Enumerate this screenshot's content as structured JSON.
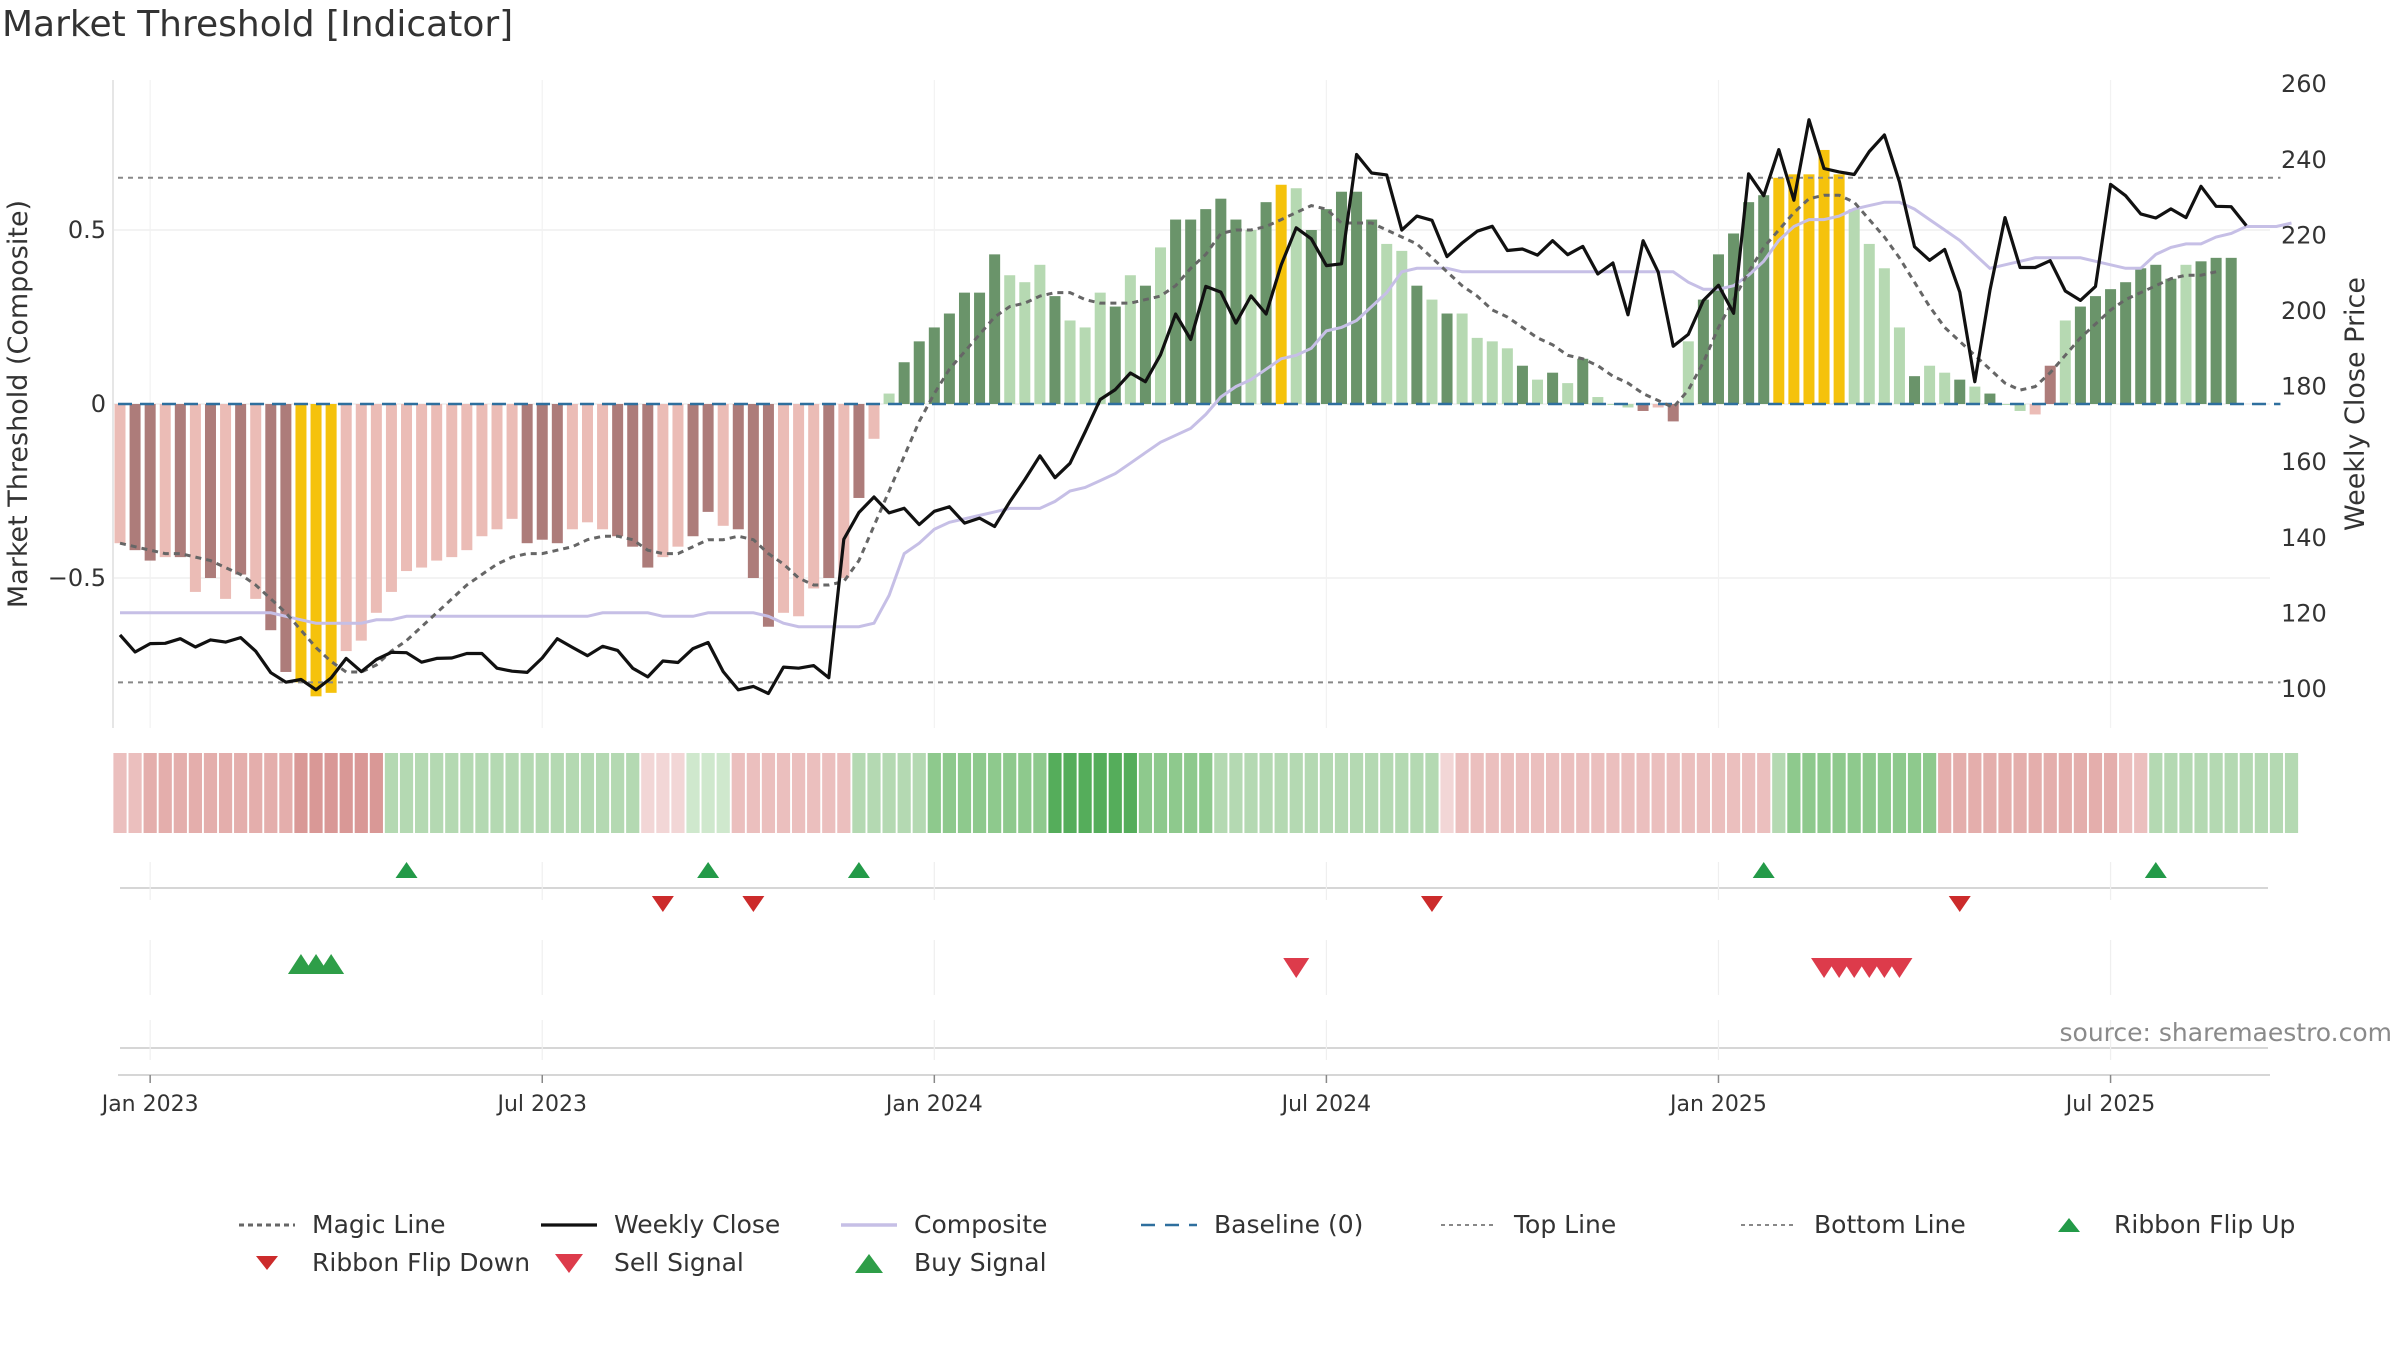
{
  "title": "Market Threshold [Indicator]",
  "source": "source: sharemaestro.com",
  "colors": {
    "gold": "#f5c20c",
    "bar_green_dark": "#6a946a",
    "bar_green_light": "#b6d9b2",
    "bar_red_dark": "#ad7c7a",
    "bar_red_light": "#ebbcb6",
    "close_line": "#111111",
    "composite_line": "#c6bfe6",
    "magic_line": "#666666",
    "baseline": "#2e6f9e",
    "threshold_line": "#888888",
    "ribbon_flip": "#239a48",
    "ribbon_flip_down": "#cc2b2b",
    "sell": "#dd3b4b",
    "buy": "#2e9e48"
  },
  "chart_data": {
    "type": "bar",
    "left_axis": {
      "label": "Market Threshold (Composite)",
      "ticks": [
        "0.5",
        "0",
        "−0.5"
      ],
      "tick_values": [
        0.5,
        0,
        -0.5
      ],
      "range": [
        -0.93,
        0.93
      ]
    },
    "right_axis": {
      "label": "Weekly Close Price",
      "ticks": [
        "260",
        "240",
        "220",
        "200",
        "180",
        "160",
        "140",
        "120",
        "100"
      ],
      "tick_values": [
        260,
        240,
        220,
        200,
        180,
        160,
        140,
        120,
        100
      ],
      "range": [
        96,
        260
      ]
    },
    "x_ticks": [
      {
        "label": "Jan 2023",
        "week": 2
      },
      {
        "label": "Jul 2023",
        "week": 28
      },
      {
        "label": "Jan 2024",
        "week": 54
      },
      {
        "label": "Jul 2024",
        "week": 80
      },
      {
        "label": "Jan 2025",
        "week": 106
      },
      {
        "label": "Jul 2025",
        "week": 132
      }
    ],
    "weeks": 144,
    "top_line": 0.65,
    "bottom_line": -0.8,
    "composite_bars": [
      -0.4,
      -0.42,
      -0.45,
      -0.44,
      -0.44,
      -0.54,
      -0.5,
      -0.56,
      -0.49,
      -0.56,
      -0.65,
      -0.77,
      -0.8,
      -0.84,
      -0.83,
      -0.71,
      -0.68,
      -0.6,
      -0.54,
      -0.48,
      -0.47,
      -0.45,
      -0.44,
      -0.42,
      -0.38,
      -0.36,
      -0.33,
      -0.4,
      -0.39,
      -0.4,
      -0.36,
      -0.34,
      -0.36,
      -0.38,
      -0.41,
      -0.47,
      -0.44,
      -0.41,
      -0.38,
      -0.31,
      -0.35,
      -0.36,
      -0.5,
      -0.64,
      -0.6,
      -0.61,
      -0.53,
      -0.5,
      -0.5,
      -0.27,
      -0.1,
      0.03,
      0.12,
      0.18,
      0.22,
      0.26,
      0.32,
      0.32,
      0.43,
      0.37,
      0.35,
      0.4,
      0.31,
      0.24,
      0.22,
      0.32,
      0.28,
      0.37,
      0.34,
      0.45,
      0.53,
      0.53,
      0.56,
      0.59,
      0.53,
      0.5,
      0.58,
      0.63,
      0.62,
      0.5,
      0.56,
      0.61,
      0.61,
      0.53,
      0.46,
      0.44,
      0.34,
      0.3,
      0.26,
      0.26,
      0.19,
      0.18,
      0.16,
      0.11,
      0.07,
      0.09,
      0.06,
      0.13,
      0.02,
      0.0,
      -0.01,
      -0.02,
      -0.01,
      -0.05,
      0.18,
      0.3,
      0.43,
      0.49,
      0.58,
      0.6,
      0.65,
      0.66,
      0.66,
      0.73,
      0.66,
      0.56,
      0.46,
      0.39,
      0.22,
      0.08,
      0.11,
      0.09,
      0.07,
      0.05,
      0.03,
      0.0,
      -0.02,
      -0.03,
      0.11,
      0.24,
      0.28,
      0.31,
      0.33,
      0.35,
      0.39,
      0.4,
      0.36,
      0.4,
      0.41,
      0.42,
      0.42
    ],
    "bar_styles": [
      "rl",
      "rd",
      "rd",
      "rl",
      "rd",
      "rl",
      "rd",
      "rl",
      "rd",
      "rl",
      "rd",
      "rd",
      "g",
      "g",
      "g",
      "rl",
      "rl",
      "rl",
      "rl",
      "rl",
      "rl",
      "rl",
      "rl",
      "rl",
      "rl",
      "rl",
      "rl",
      "rd",
      "rd",
      "rd",
      "rl",
      "rl",
      "rl",
      "rd",
      "rd",
      "rd",
      "rl",
      "rl",
      "rd",
      "rd",
      "rl",
      "rd",
      "rd",
      "rd",
      "rl",
      "rl",
      "rl",
      "rd",
      "rl",
      "rd",
      "rl",
      "gl",
      "gd",
      "gd",
      "gd",
      "gd",
      "gd",
      "gd",
      "gd",
      "gl",
      "gl",
      "gl",
      "gd",
      "gl",
      "gl",
      "gl",
      "gd",
      "gl",
      "gd",
      "gl",
      "gd",
      "gd",
      "gd",
      "gd",
      "gd",
      "gl",
      "gd",
      "g",
      "gl",
      "gd",
      "gd",
      "gd",
      "gd",
      "gd",
      "gl",
      "gl",
      "gd",
      "gl",
      "gd",
      "gl",
      "gl",
      "gl",
      "gl",
      "gd",
      "gl",
      "gd",
      "gl",
      "gd",
      "gl",
      "gl",
      "gl",
      "rd",
      "rl",
      "rd",
      "gl",
      "gd",
      "gd",
      "gd",
      "gd",
      "gd",
      "g",
      "g",
      "g",
      "g",
      "g",
      "gl",
      "gl",
      "gl",
      "gl",
      "gd",
      "gl",
      "gl",
      "gd",
      "gl",
      "gd",
      "gl",
      "gl",
      "rl",
      "rd",
      "gl",
      "gd",
      "gd",
      "gd",
      "gd",
      "gd",
      "gd",
      "gd",
      "gl",
      "gd",
      "gd",
      "gd",
      "gd"
    ],
    "series": [
      {
        "name": "Weekly Close",
        "values": [
          114.3,
          109.8,
          112.0,
          112.1,
          113.3,
          111.1,
          113.0,
          112.4,
          113.6,
          110.0,
          104.3,
          101.8,
          102.5,
          99.8,
          102.9,
          108.1,
          104.6,
          107.8,
          109.7,
          109.6,
          107.1,
          108.1,
          108.2,
          109.4,
          109.4,
          105.5,
          104.7,
          104.4,
          108.2,
          113.3,
          111.0,
          108.8,
          111.3,
          110.2,
          105.5,
          103.2,
          107.4,
          107.0,
          110.7,
          112.3,
          104.6,
          99.8,
          100.7,
          98.8,
          105.8,
          105.5,
          106.2,
          103.0,
          139.6,
          146.7,
          150.8,
          146.6,
          147.8,
          143.5,
          147.0,
          148.2,
          143.9,
          145.2,
          143.0,
          149.5,
          155.4,
          161.7,
          155.9,
          159.7,
          168.0,
          176.6,
          179.2,
          183.6,
          181.3,
          188.4,
          199.2,
          192.5,
          206.5,
          205.0,
          196.8,
          204.0,
          199.2,
          212.2,
          222.0,
          219.1,
          212.0,
          212.5,
          241.4,
          236.5,
          236.0,
          221.4,
          225.1,
          224.0,
          214.4,
          218.0,
          221.1,
          222.4,
          216.0,
          216.4,
          214.8,
          218.6,
          214.9,
          217.1,
          209.8,
          212.7,
          199.0,
          218.6,
          210.3,
          190.7,
          193.8,
          202.8,
          206.8,
          199.4,
          236.3,
          230.5,
          242.7,
          229.3,
          250.6,
          237.7,
          236.8,
          236.1,
          242.2,
          246.6,
          234.2,
          217.0,
          213.4,
          216.3,
          205.0,
          181.3,
          205.4,
          224.7,
          211.5,
          211.5,
          213.3,
          205.3,
          202.8,
          206.5,
          233.5,
          230.5,
          225.7,
          224.6,
          227.0,
          224.7,
          233.0,
          227.7,
          227.6,
          222.6
        ]
      },
      {
        "name": "Composite",
        "values": [
          -0.6,
          -0.6,
          -0.6,
          -0.6,
          -0.6,
          -0.6,
          -0.6,
          -0.6,
          -0.6,
          -0.6,
          -0.6,
          -0.61,
          -0.62,
          -0.63,
          -0.63,
          -0.63,
          -0.63,
          -0.62,
          -0.62,
          -0.61,
          -0.61,
          -0.61,
          -0.61,
          -0.61,
          -0.61,
          -0.61,
          -0.61,
          -0.61,
          -0.61,
          -0.61,
          -0.61,
          -0.61,
          -0.6,
          -0.6,
          -0.6,
          -0.6,
          -0.61,
          -0.61,
          -0.61,
          -0.6,
          -0.6,
          -0.6,
          -0.6,
          -0.61,
          -0.63,
          -0.64,
          -0.64,
          -0.64,
          -0.64,
          -0.64,
          -0.63,
          -0.55,
          -0.43,
          -0.4,
          -0.36,
          -0.34,
          -0.33,
          -0.32,
          -0.31,
          -0.3,
          -0.3,
          -0.3,
          -0.28,
          -0.25,
          -0.24,
          -0.22,
          -0.2,
          -0.17,
          -0.14,
          -0.11,
          -0.09,
          -0.07,
          -0.03,
          0.02,
          0.05,
          0.07,
          0.1,
          0.13,
          0.14,
          0.16,
          0.21,
          0.22,
          0.24,
          0.28,
          0.32,
          0.38,
          0.39,
          0.39,
          0.39,
          0.38,
          0.38,
          0.38,
          0.38,
          0.38,
          0.38,
          0.38,
          0.38,
          0.38,
          0.38,
          0.38,
          0.38,
          0.38,
          0.38,
          0.38,
          0.35,
          0.33,
          0.33,
          0.34,
          0.37,
          0.41,
          0.47,
          0.51,
          0.53,
          0.53,
          0.54,
          0.56,
          0.57,
          0.58,
          0.58,
          0.56,
          0.53,
          0.5,
          0.47,
          0.43,
          0.39,
          0.4,
          0.41,
          0.42,
          0.42,
          0.42,
          0.42,
          0.41,
          0.4,
          0.39,
          0.39,
          0.43,
          0.45,
          0.46,
          0.46,
          0.48,
          0.49,
          0.51,
          0.51,
          0.51,
          0.52
        ]
      },
      {
        "name": "Magic Line",
        "values": [
          -0.4,
          -0.41,
          -0.42,
          -0.43,
          -0.43,
          -0.44,
          -0.45,
          -0.47,
          -0.49,
          -0.52,
          -0.56,
          -0.6,
          -0.65,
          -0.7,
          -0.74,
          -0.77,
          -0.77,
          -0.75,
          -0.71,
          -0.68,
          -0.64,
          -0.6,
          -0.56,
          -0.52,
          -0.49,
          -0.46,
          -0.44,
          -0.43,
          -0.43,
          -0.42,
          -0.41,
          -0.39,
          -0.38,
          -0.38,
          -0.39,
          -0.42,
          -0.43,
          -0.43,
          -0.41,
          -0.39,
          -0.39,
          -0.38,
          -0.39,
          -0.43,
          -0.46,
          -0.5,
          -0.52,
          -0.52,
          -0.51,
          -0.45,
          -0.35,
          -0.25,
          -0.15,
          -0.05,
          0.03,
          0.1,
          0.15,
          0.2,
          0.25,
          0.28,
          0.29,
          0.31,
          0.32,
          0.32,
          0.3,
          0.29,
          0.29,
          0.29,
          0.3,
          0.31,
          0.34,
          0.39,
          0.43,
          0.49,
          0.5,
          0.5,
          0.51,
          0.53,
          0.55,
          0.57,
          0.56,
          0.52,
          0.52,
          0.52,
          0.5,
          0.48,
          0.46,
          0.42,
          0.38,
          0.34,
          0.31,
          0.27,
          0.25,
          0.22,
          0.19,
          0.17,
          0.14,
          0.13,
          0.11,
          0.08,
          0.06,
          0.03,
          0.01,
          -0.01,
          0.04,
          0.12,
          0.22,
          0.3,
          0.38,
          0.45,
          0.5,
          0.55,
          0.59,
          0.6,
          0.6,
          0.58,
          0.53,
          0.48,
          0.42,
          0.35,
          0.28,
          0.22,
          0.18,
          0.14,
          0.1,
          0.06,
          0.04,
          0.05,
          0.09,
          0.14,
          0.19,
          0.23,
          0.27,
          0.3,
          0.32,
          0.34,
          0.36,
          0.37,
          0.37,
          0.38
        ]
      },
      {
        "name": "Baseline (0)",
        "values": []
      },
      {
        "name": "Top Line",
        "values": []
      },
      {
        "name": "Bottom Line",
        "values": []
      }
    ],
    "ribbon": [
      "r1",
      "r1",
      "r2",
      "r2",
      "r2",
      "r2",
      "r2",
      "r2",
      "r2",
      "r2",
      "r2",
      "r2",
      "r3",
      "r3",
      "r3",
      "r3",
      "r3",
      "r3",
      "g1",
      "g1",
      "g1",
      "g1",
      "g1",
      "g1",
      "g1",
      "g1",
      "g1",
      "g1",
      "g1",
      "g1",
      "g1",
      "g1",
      "g1",
      "g1",
      "g1",
      "r0",
      "r0",
      "r0",
      "g0",
      "g0",
      "g0",
      "r1",
      "r1",
      "r1",
      "r1",
      "r1",
      "r1",
      "r1",
      "r1",
      "g1",
      "g1",
      "g1",
      "g1",
      "g1",
      "g2",
      "g2",
      "g2",
      "g2",
      "g2",
      "g2",
      "g2",
      "g2",
      "g3",
      "g3",
      "g3",
      "g3",
      "g3",
      "g3",
      "g2",
      "g2",
      "g2",
      "g2",
      "g2",
      "g1",
      "g1",
      "g1",
      "g1",
      "g1",
      "g1",
      "g1",
      "g1",
      "g1",
      "g1",
      "g1",
      "g1",
      "g1",
      "g1",
      "g1",
      "r0",
      "r1",
      "r1",
      "r1",
      "r1",
      "r1",
      "r1",
      "r1",
      "r1",
      "r1",
      "r1",
      "r1",
      "r1",
      "r1",
      "r1",
      "r1",
      "r1",
      "r1",
      "r1",
      "r1",
      "r1",
      "r1",
      "g1",
      "g2",
      "g2",
      "g2",
      "g2",
      "g2",
      "g2",
      "g2",
      "g2",
      "g2",
      "g2",
      "r2",
      "r2",
      "r2",
      "r2",
      "r2",
      "r2",
      "r2",
      "r2",
      "r2",
      "r2",
      "r2",
      "r2",
      "r1",
      "r1",
      "g1",
      "g1",
      "g1",
      "g1",
      "g1",
      "g1",
      "g1",
      "g1",
      "g1",
      "g1"
    ],
    "ribbon_flip_up": [
      19,
      39,
      49,
      109,
      135
    ],
    "ribbon_flip_down": [
      36,
      42,
      87,
      122
    ],
    "buy_signals": [
      12,
      13,
      14
    ],
    "sell_signals": [
      78,
      113,
      114,
      115,
      116,
      117,
      118
    ]
  },
  "legend": [
    {
      "label": "Magic Line",
      "icon": "dotted-line-icon"
    },
    {
      "label": "Weekly Close",
      "icon": "solid-line-icon"
    },
    {
      "label": "Composite",
      "icon": "lavender-line-icon"
    },
    {
      "label": "Baseline (0)",
      "icon": "dashed-line-icon"
    },
    {
      "label": "Top Line",
      "icon": "fine-dotted-line-icon"
    },
    {
      "label": "Bottom Line",
      "icon": "fine-dotted-line-icon"
    },
    {
      "label": "Ribbon Flip Up",
      "icon": "triangle-up-icon"
    },
    {
      "label": "Ribbon Flip Down",
      "icon": "triangle-down-icon"
    },
    {
      "label": "Sell Signal",
      "icon": "triangle-down-large-icon"
    },
    {
      "label": "Buy Signal",
      "icon": "triangle-up-large-icon"
    }
  ]
}
